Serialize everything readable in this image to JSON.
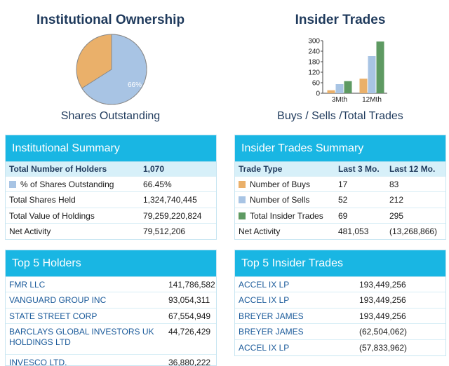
{
  "ownership": {
    "title": "Institutional Ownership",
    "subtitle": "Shares Outstanding",
    "pie_label": "66%",
    "pie_percent": 66,
    "colors": {
      "held": "#a8c4e4",
      "other": "#eab06a"
    }
  },
  "insider_chart": {
    "title": "Insider Trades",
    "subtitle": "Buys / Sells /Total Trades"
  },
  "chart_data": {
    "type": "bar",
    "categories": [
      "3Mth",
      "12Mth"
    ],
    "series": [
      {
        "name": "Number of Buys",
        "values": [
          17,
          83
        ],
        "color": "#eab06a"
      },
      {
        "name": "Number of Sells",
        "values": [
          52,
          212
        ],
        "color": "#a8c4e4"
      },
      {
        "name": "Total Insider Trades",
        "values": [
          69,
          295
        ],
        "color": "#5e9a62"
      }
    ],
    "yticks": [
      "0",
      "60",
      "120",
      "180",
      "240",
      "300"
    ],
    "ylim": [
      0,
      300
    ]
  },
  "inst_summary": {
    "title": "Institutional Summary",
    "header": {
      "label": "Total Number of Holders",
      "value": "1,070"
    },
    "rows": [
      {
        "label": "% of Shares Outstanding",
        "value": "66.45%",
        "swatch": "#a8c4e4"
      },
      {
        "label": "Total Shares Held",
        "value": "1,324,740,445"
      },
      {
        "label": "Total Value of Holdings",
        "value": "79,259,220,824"
      },
      {
        "label": "Net Activity",
        "value": "79,512,206"
      }
    ]
  },
  "insider_summary": {
    "title": "Insider Trades Summary",
    "header": {
      "type": "Trade Type",
      "m3": "Last 3 Mo.",
      "m12": "Last 12 Mo."
    },
    "rows": [
      {
        "label": "Number of Buys",
        "m3": "17",
        "m12": "83",
        "swatch": "#eab06a"
      },
      {
        "label": "Number of Sells",
        "m3": "52",
        "m12": "212",
        "swatch": "#a8c4e4"
      },
      {
        "label": "Total Insider Trades",
        "m3": "69",
        "m12": "295",
        "swatch": "#5e9a62"
      },
      {
        "label": "Net Activity",
        "m3": "481,053",
        "m12": "(13,268,866)"
      }
    ]
  },
  "top_holders": {
    "title": "Top 5 Holders",
    "rows": [
      {
        "name": "FMR LLC",
        "value": "141,786,582"
      },
      {
        "name": "VANGUARD GROUP INC",
        "value": "93,054,311"
      },
      {
        "name": "STATE STREET CORP",
        "value": "67,554,949"
      },
      {
        "name": "BARCLAYS GLOBAL INVESTORS UK HOLDINGS LTD",
        "value": "44,726,429"
      },
      {
        "name": "INVESCO LTD.",
        "value": "36,880,222"
      }
    ]
  },
  "top_insider": {
    "title": "Top 5 Insider Trades",
    "rows": [
      {
        "name": "ACCEL IX LP",
        "value": "193,449,256"
      },
      {
        "name": "ACCEL IX LP",
        "value": "193,449,256"
      },
      {
        "name": "BREYER JAMES",
        "value": "193,449,256"
      },
      {
        "name": "BREYER JAMES",
        "value": "(62,504,062)"
      },
      {
        "name": "ACCEL IX LP",
        "value": "(57,833,962)"
      }
    ]
  }
}
